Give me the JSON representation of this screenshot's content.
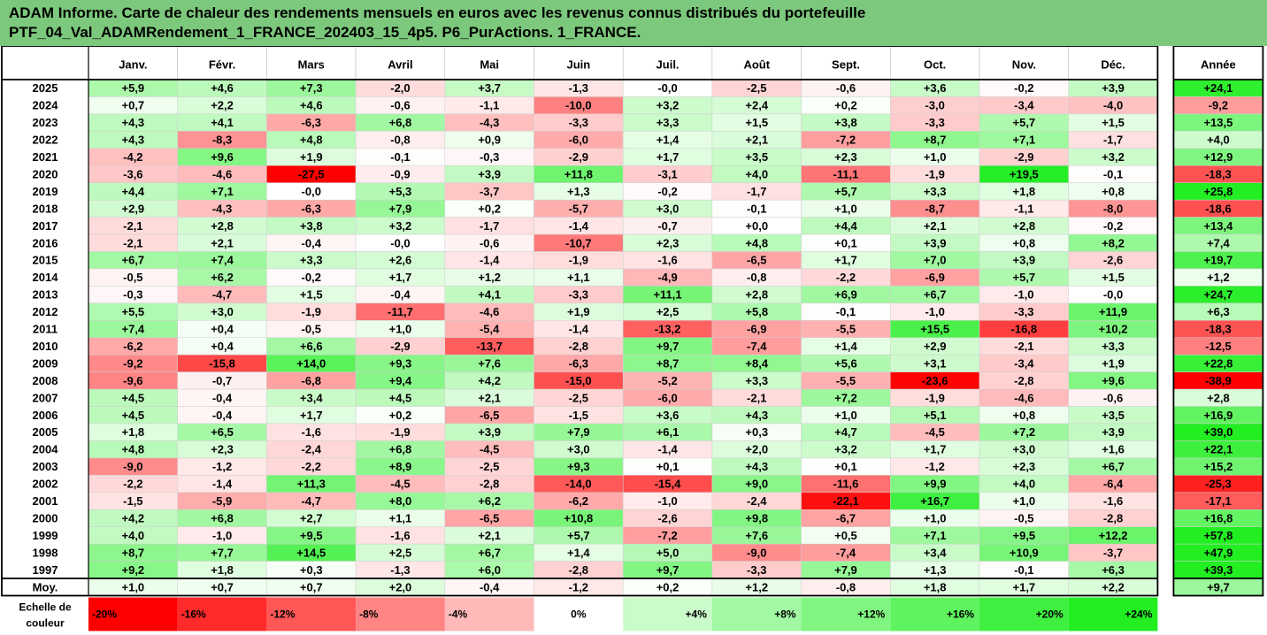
{
  "title": {
    "line1": "ADAM Informe. Carte de chaleur des rendements mensuels en euros avec les revenus connus distribués du portefeuille",
    "line2": "PTF_04_Val_ADAMRendement_1_FRANCE_202403_15_4p5. P6_PurActions. 1_FRANCE."
  },
  "chart_data": {
    "type": "heatmap",
    "columns": [
      "Janv.",
      "Févr.",
      "Mars",
      "Avril",
      "Mai",
      "Juin",
      "Juil.",
      "Août",
      "Sept.",
      "Oct.",
      "Nov.",
      "Déc."
    ],
    "year_column": "Année",
    "rows": [
      {
        "label": "2025",
        "values": [
          5.9,
          4.6,
          7.3,
          -2.0,
          3.7,
          -1.3,
          -0.0,
          -2.5,
          -0.6,
          3.6,
          -0.2,
          3.9
        ],
        "year": 24.1
      },
      {
        "label": "2024",
        "values": [
          0.7,
          2.2,
          4.6,
          -0.6,
          -1.1,
          -10.0,
          3.2,
          2.4,
          0.2,
          -3.0,
          -3.4,
          -4.0
        ],
        "year": -9.2
      },
      {
        "label": "2023",
        "values": [
          4.3,
          4.1,
          -6.3,
          6.8,
          -4.3,
          -3.3,
          3.3,
          1.5,
          3.8,
          -3.3,
          5.7,
          1.5
        ],
        "year": 13.5
      },
      {
        "label": "2022",
        "values": [
          4.3,
          -8.3,
          4.8,
          -0.8,
          0.9,
          -6.0,
          1.4,
          2.1,
          -7.2,
          8.7,
          7.1,
          -1.7
        ],
        "year": 4.0
      },
      {
        "label": "2021",
        "values": [
          -4.2,
          9.6,
          1.9,
          -0.1,
          -0.3,
          -2.9,
          1.7,
          3.5,
          2.3,
          1.0,
          -2.9,
          3.2
        ],
        "year": 12.9
      },
      {
        "label": "2020",
        "values": [
          -3.6,
          -4.6,
          -27.5,
          -0.9,
          3.9,
          11.8,
          -3.1,
          4.0,
          -11.1,
          -1.9,
          19.5,
          -0.1
        ],
        "year": -18.3
      },
      {
        "label": "2019",
        "values": [
          4.4,
          7.1,
          -0.0,
          5.3,
          -3.7,
          1.3,
          -0.2,
          -1.7,
          5.7,
          3.3,
          1.8,
          0.8
        ],
        "year": 25.8
      },
      {
        "label": "2018",
        "values": [
          2.9,
          -4.3,
          -6.3,
          7.9,
          0.2,
          -5.7,
          3.0,
          -0.1,
          1.0,
          -8.7,
          -1.1,
          -8.0
        ],
        "year": -18.6
      },
      {
        "label": "2017",
        "values": [
          -2.1,
          2.8,
          3.8,
          3.2,
          -1.7,
          -1.4,
          -0.7,
          0.0,
          4.4,
          2.1,
          2.8,
          -0.2
        ],
        "year": 13.4
      },
      {
        "label": "2016",
        "values": [
          -2.1,
          2.1,
          -0.4,
          -0.0,
          -0.6,
          -10.7,
          2.3,
          4.8,
          0.1,
          3.9,
          0.8,
          8.2
        ],
        "year": 7.4
      },
      {
        "label": "2015",
        "values": [
          6.7,
          7.4,
          3.3,
          2.6,
          -1.4,
          -1.9,
          -1.6,
          -6.5,
          1.7,
          7.0,
          3.9,
          -2.6
        ],
        "year": 19.7
      },
      {
        "label": "2014",
        "values": [
          -0.5,
          6.2,
          -0.2,
          1.7,
          1.2,
          1.1,
          -4.9,
          -0.8,
          -2.2,
          -6.9,
          5.7,
          1.5
        ],
        "year": 1.2
      },
      {
        "label": "2013",
        "values": [
          -0.3,
          -4.7,
          1.5,
          -0.4,
          4.1,
          -3.3,
          11.1,
          2.8,
          6.9,
          6.7,
          -1.0,
          -0.0
        ],
        "year": 24.7
      },
      {
        "label": "2012",
        "values": [
          5.5,
          3.0,
          -1.9,
          -11.7,
          -4.6,
          1.9,
          2.5,
          5.8,
          -0.1,
          -1.0,
          -3.3,
          11.9
        ],
        "year": 6.3
      },
      {
        "label": "2011",
        "values": [
          7.4,
          0.4,
          -0.5,
          1.0,
          -5.4,
          -1.4,
          -13.2,
          -6.9,
          -5.5,
          15.5,
          -16.8,
          10.2
        ],
        "year": -18.3
      },
      {
        "label": "2010",
        "values": [
          -6.2,
          0.4,
          6.6,
          -2.9,
          -13.7,
          -2.8,
          9.7,
          -7.4,
          1.4,
          2.9,
          -2.1,
          3.3
        ],
        "year": -12.5
      },
      {
        "label": "2009",
        "values": [
          -9.2,
          -15.8,
          14.0,
          9.3,
          7.6,
          -6.3,
          8.7,
          8.4,
          5.6,
          3.1,
          -3.4,
          1.9
        ],
        "year": 22.8
      },
      {
        "label": "2008",
        "values": [
          -9.6,
          -0.7,
          -6.8,
          9.4,
          4.2,
          -15.0,
          -5.2,
          3.3,
          -5.5,
          -23.6,
          -2.8,
          9.6
        ],
        "year": -38.9
      },
      {
        "label": "2007",
        "values": [
          4.5,
          -0.4,
          3.4,
          4.5,
          2.1,
          -2.5,
          -6.0,
          -2.1,
          7.2,
          -1.9,
          -4.6,
          -0.6
        ],
        "year": 2.8
      },
      {
        "label": "2006",
        "values": [
          4.5,
          -0.4,
          1.7,
          0.2,
          -6.5,
          -1.5,
          3.6,
          4.3,
          1.0,
          5.1,
          0.8,
          3.5
        ],
        "year": 16.9
      },
      {
        "label": "2005",
        "values": [
          1.8,
          6.5,
          -1.6,
          -1.9,
          3.9,
          7.9,
          6.1,
          0.3,
          4.7,
          -4.5,
          7.2,
          3.9
        ],
        "year": 39.0
      },
      {
        "label": "2004",
        "values": [
          4.8,
          2.3,
          -2.4,
          6.8,
          -4.5,
          3.0,
          -1.4,
          2.0,
          3.2,
          1.7,
          3.0,
          1.6
        ],
        "year": 22.1
      },
      {
        "label": "2003",
        "values": [
          -9.0,
          -1.2,
          -2.2,
          8.9,
          -2.5,
          9.3,
          0.1,
          4.3,
          0.1,
          -1.2,
          2.3,
          6.7
        ],
        "year": 15.2
      },
      {
        "label": "2002",
        "values": [
          -2.2,
          -1.4,
          11.3,
          -4.5,
          -2.8,
          -14.0,
          -15.4,
          9.0,
          -11.6,
          9.9,
          4.0,
          -6.4
        ],
        "year": -25.3
      },
      {
        "label": "2001",
        "values": [
          -1.5,
          -5.9,
          -4.7,
          8.0,
          6.2,
          -6.2,
          -1.0,
          -2.4,
          -22.1,
          16.7,
          1.0,
          -1.6
        ],
        "year": -17.1
      },
      {
        "label": "2000",
        "values": [
          4.2,
          6.8,
          2.7,
          1.1,
          -6.5,
          10.8,
          -2.6,
          9.8,
          -6.7,
          1.0,
          -0.5,
          -2.8
        ],
        "year": 16.8
      },
      {
        "label": "1999",
        "values": [
          4.0,
          -1.0,
          9.5,
          -1.6,
          2.1,
          5.7,
          -7.2,
          7.6,
          0.5,
          7.1,
          9.5,
          12.2
        ],
        "year": 57.8
      },
      {
        "label": "1998",
        "values": [
          8.7,
          7.7,
          14.5,
          2.5,
          6.7,
          1.4,
          5.0,
          -9.0,
          -7.4,
          3.4,
          10.9,
          -3.7
        ],
        "year": 47.9
      },
      {
        "label": "1997",
        "values": [
          9.2,
          1.8,
          0.3,
          -1.3,
          6.0,
          -2.8,
          9.7,
          -3.3,
          7.9,
          1.3,
          -0.1,
          6.3
        ],
        "year": 39.3
      }
    ],
    "average": {
      "label": "Moy.",
      "values": [
        1.0,
        0.7,
        0.7,
        2.0,
        -0.4,
        -1.2,
        0.2,
        1.2,
        -0.8,
        1.8,
        1.7,
        2.2
      ],
      "year": 9.7
    },
    "scale": {
      "label_line1": "Echelle de",
      "label_line2": "couleur",
      "stops": [
        -20,
        -16,
        -12,
        -8,
        -4,
        0,
        4,
        8,
        12,
        16,
        20,
        24
      ],
      "labels": [
        "-20%",
        "-16%",
        "-12%",
        "-8%",
        "-4%",
        "0%",
        "+4%",
        "+8%",
        "+12%",
        "+16%",
        "+20%",
        "+24%"
      ]
    },
    "colors": {
      "negative_max": "#ff0000",
      "positive_max": "#22ee22",
      "neutral": "#ffffff",
      "header_bg": "#ffffff",
      "title_bg": "#7cc87c"
    }
  }
}
